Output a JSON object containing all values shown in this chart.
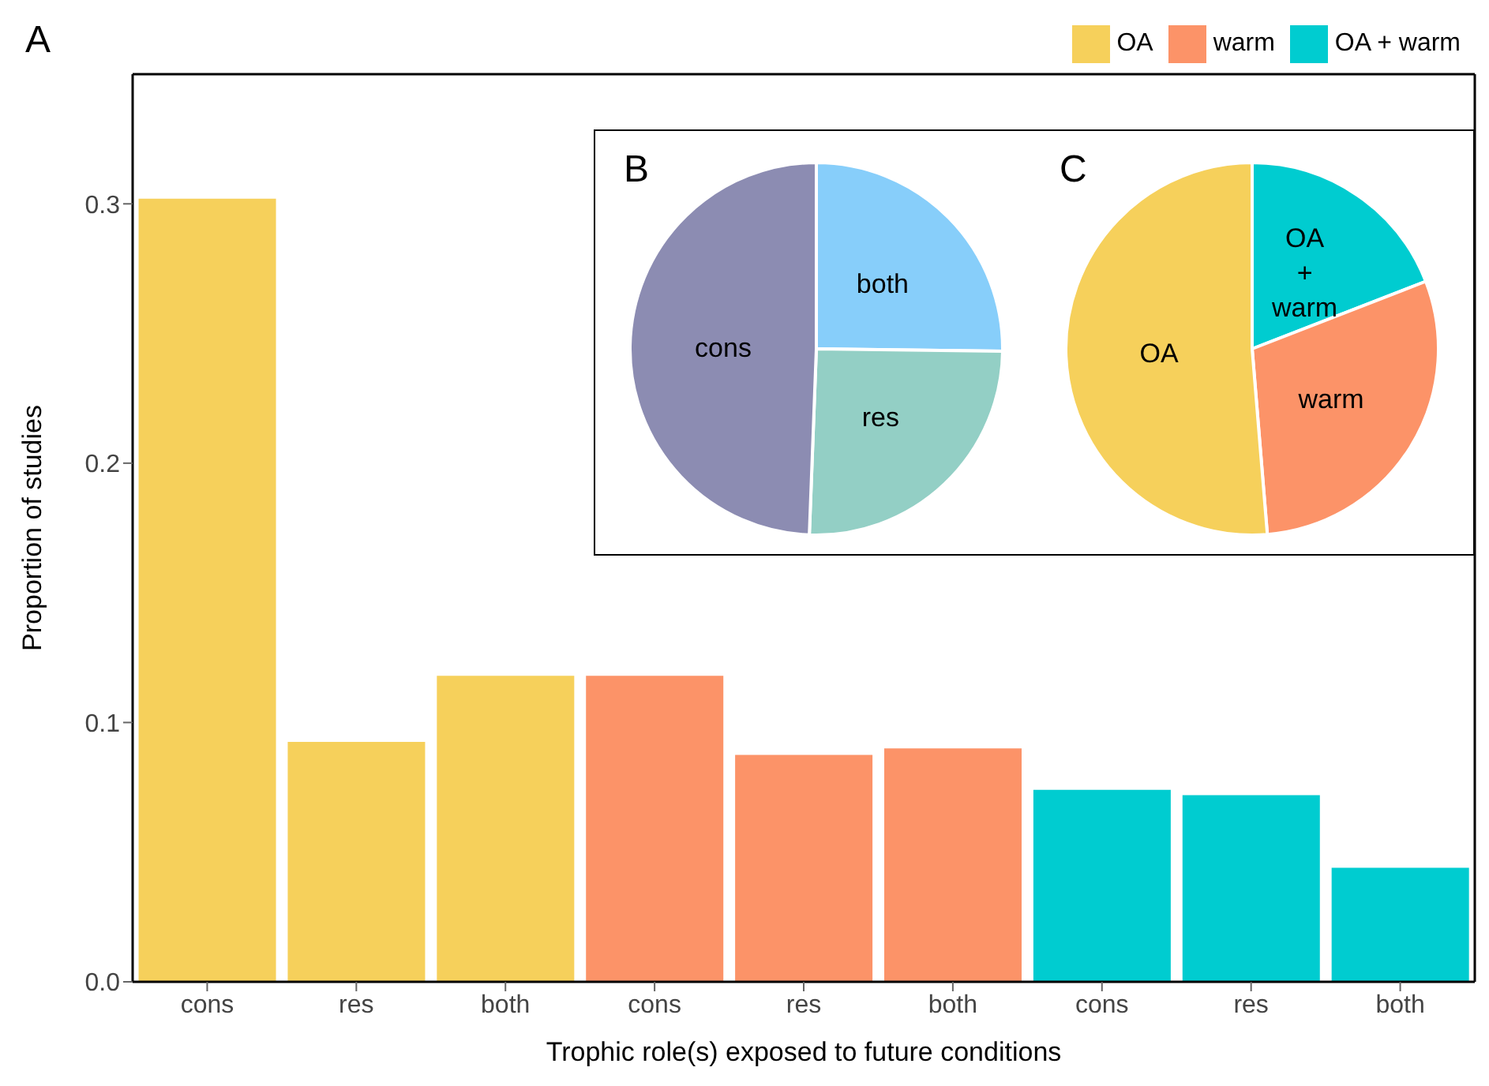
{
  "chart_data": [
    {
      "type": "bar",
      "title": "A",
      "xlabel": "Trophic role(s) exposed to future conditions",
      "ylabel": "Proportion of studies",
      "categories": [
        "cons",
        "res",
        "both",
        "cons",
        "res",
        "both",
        "cons",
        "res",
        "both"
      ],
      "stacked": true,
      "series": [
        {
          "name": "OA",
          "color": "#f6d05b",
          "values": [
            0.302,
            0.0925,
            0.118,
            null,
            null,
            null,
            null,
            null,
            null
          ]
        },
        {
          "name": "warm",
          "color": "#fc9368",
          "values": [
            null,
            null,
            null,
            0.118,
            0.0875,
            0.09,
            null,
            null,
            null
          ]
        },
        {
          "name": "OA + warm",
          "color": "#00ccd0",
          "values": [
            null,
            null,
            null,
            null,
            null,
            null,
            0.074,
            0.072,
            0.044
          ]
        }
      ],
      "ylim": [
        0,
        0.35
      ],
      "yticks": [
        {
          "value": 0,
          "label": "0.0"
        },
        0.1,
        0.2,
        0.3
      ],
      "legend": "top right"
    },
    {
      "type": "pie",
      "title": "B",
      "categories": [
        "both",
        "res",
        "cons"
      ],
      "values": [
        25.2,
        25.4,
        49.4
      ],
      "colors": [
        "#87cefa",
        "#93cfc5",
        "#8c8cb2"
      ]
    },
    {
      "type": "pie",
      "title": "C",
      "categories": [
        "OA + warm",
        "warm",
        "OA"
      ],
      "values": [
        19.1,
        29.6,
        51.3
      ],
      "colors": [
        "#00ccd0",
        "#fc9368",
        "#f6d05b"
      ]
    }
  ]
}
